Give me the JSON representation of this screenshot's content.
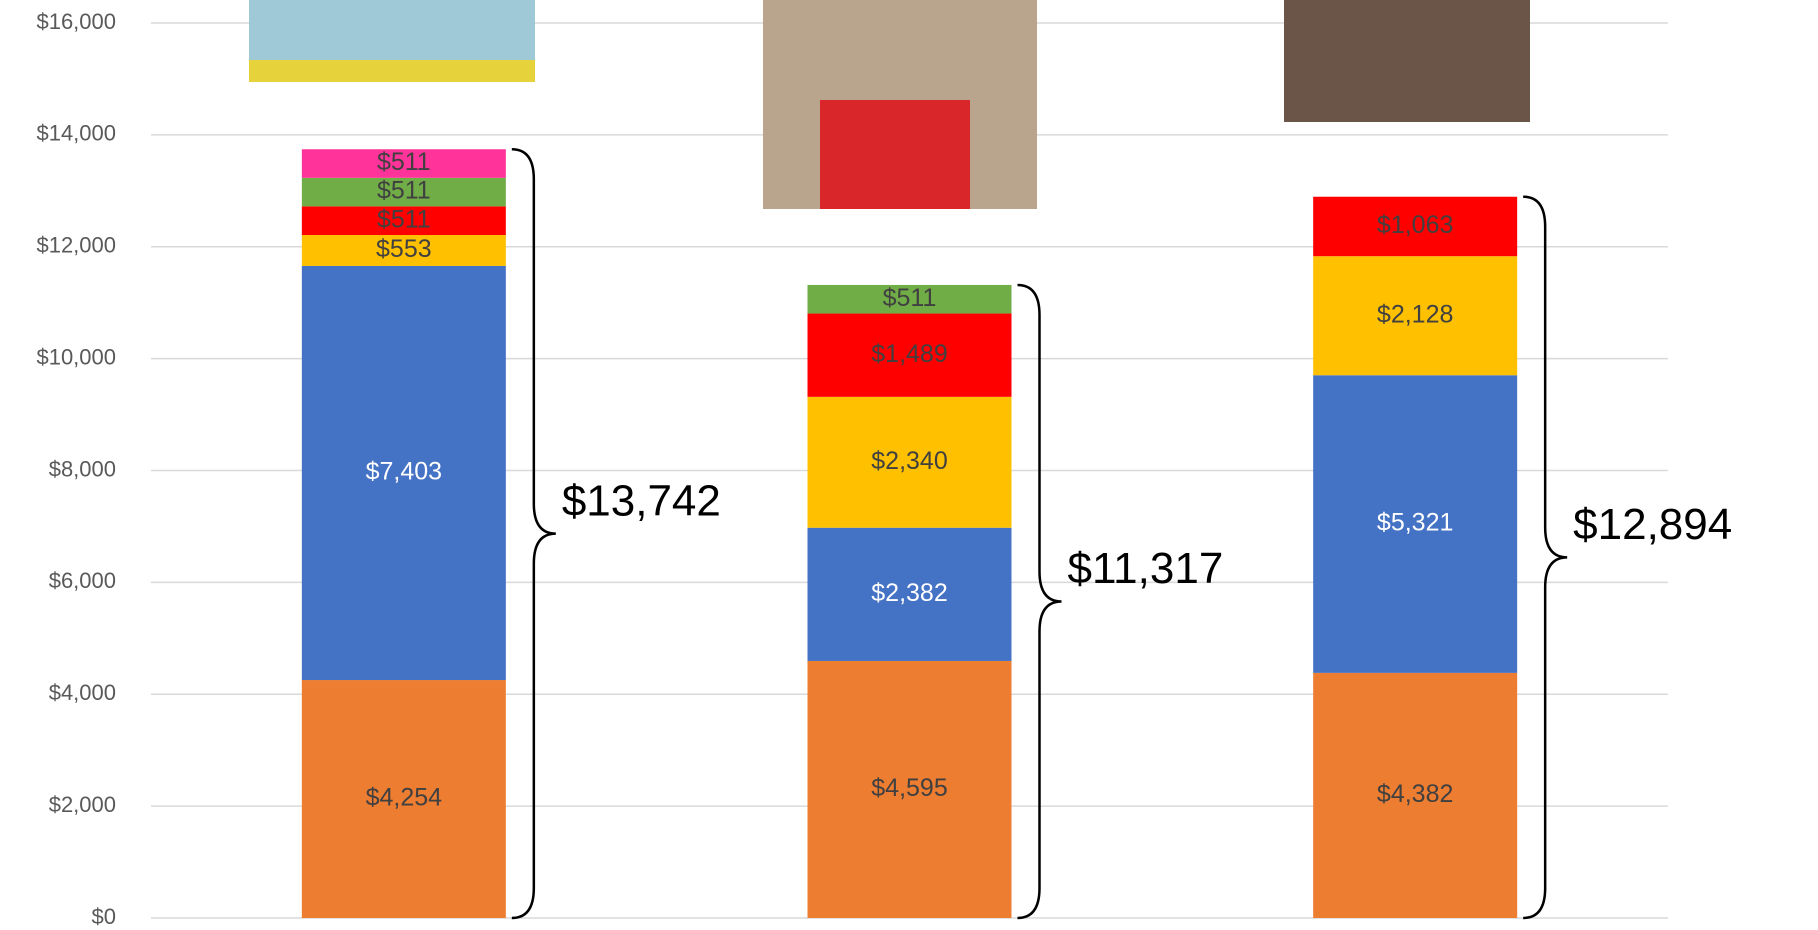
{
  "chart_data": {
    "type": "stacked_bar",
    "categories": [
      null,
      null,
      null
    ],
    "series": [
      {
        "color": "#ed7d31",
        "values": [
          4254,
          4595,
          4382
        ],
        "value_labels": [
          "$4,254",
          "$4,595",
          "$4,382"
        ]
      },
      {
        "color": "#4472c4",
        "values": [
          7403,
          2382,
          5321
        ],
        "value_labels": [
          "$7,403",
          "$2,382",
          "$5,321"
        ]
      },
      {
        "color": "#ffc000",
        "values": [
          553,
          2340,
          2128
        ],
        "value_labels": [
          "$553",
          "$2,340",
          "$2,128"
        ]
      },
      {
        "color": "#ff0000",
        "values": [
          511,
          1489,
          1063
        ],
        "value_labels": [
          "$511",
          "$1,489",
          "$1,063"
        ]
      },
      {
        "color": "#70ad47",
        "values": [
          511,
          511,
          null
        ],
        "value_labels": [
          "$511",
          "$511",
          null
        ]
      },
      {
        "color": "#ff3399",
        "values": [
          511,
          null,
          null
        ],
        "value_labels": [
          "$511",
          null,
          null
        ]
      }
    ],
    "totals": [
      13742,
      11317,
      12894
    ],
    "total_labels": [
      "$13,742",
      "$11,317",
      "$12,894"
    ],
    "ylim": [
      0,
      16000
    ],
    "yticks": [
      {
        "value": 0,
        "label": "$0"
      },
      {
        "value": 2000,
        "label": "$2,000"
      },
      {
        "value": 4000,
        "label": "$4,000"
      },
      {
        "value": 6000,
        "label": "$6,000"
      },
      {
        "value": 8000,
        "label": "$8,000"
      },
      {
        "value": 10000,
        "label": "$10,000"
      },
      {
        "value": 12000,
        "label": "$12,000"
      },
      {
        "value": 14000,
        "label": "$14,000"
      },
      {
        "value": 16000,
        "label": "$16,000"
      }
    ],
    "grid": true
  }
}
